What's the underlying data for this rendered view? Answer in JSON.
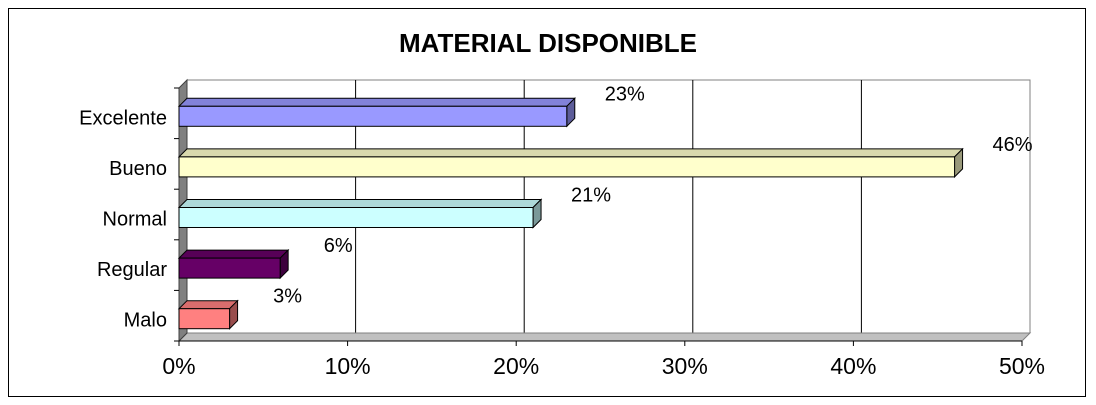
{
  "chart_data": {
    "type": "bar",
    "orientation": "horizontal",
    "title": "MATERIAL DISPONIBLE",
    "xlabel": "",
    "ylabel": "",
    "categories": [
      "Excelente",
      "Bueno",
      "Normal",
      "Regular",
      "Malo"
    ],
    "values": [
      23,
      46,
      21,
      6,
      3
    ],
    "data_labels": [
      "23%",
      "46%",
      "21%",
      "6%",
      "3%"
    ],
    "colors": [
      "#9999FF",
      "#FFFFCC",
      "#CCFFFF",
      "#660066",
      "#FF8080"
    ],
    "xlim": [
      0,
      50
    ],
    "xticks": [
      0,
      10,
      20,
      30,
      40,
      50
    ],
    "xtick_labels": [
      "0%",
      "10%",
      "20%",
      "30%",
      "40%",
      "50%"
    ],
    "grid": true,
    "legend": "none",
    "style": "3d"
  }
}
